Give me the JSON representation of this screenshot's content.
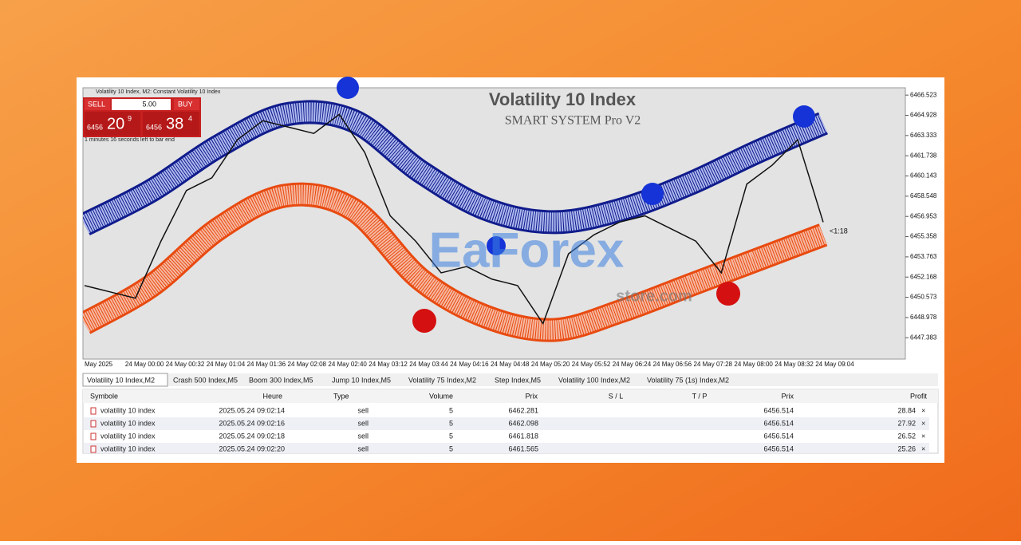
{
  "window": {
    "chart_header": "Volatility 10 Index, M2: Constant Volatility 10 Index",
    "countdown": "1 minutes 16 seconds left to bar end"
  },
  "trade_panel": {
    "sell": "SELL",
    "volume": "5.00",
    "buy": "BUY",
    "bid_big": "6456",
    "bid_main": "20",
    "bid_small": "9",
    "ask_big": "6456",
    "ask_main": "38",
    "ask_small": "4"
  },
  "chart": {
    "title": "Volatility 10 Index",
    "subtitle": "SMART SYSTEM Pro V2",
    "timer": "<1:18",
    "watermark": "EaForex",
    "watermark_sub": "store.com",
    "ylim": [
      6445.7,
      6467.1
    ],
    "yticks": [
      6466.523,
      6464.928,
      6463.333,
      6461.738,
      6460.143,
      6458.548,
      6456.953,
      6455.358,
      6453.763,
      6452.168,
      6450.573,
      6448.978,
      6447.383
    ],
    "xticks": [
      "May 2025",
      "24 May 00:00",
      "24 May 00:32",
      "24 May 01:04",
      "24 May 01:36",
      "24 May 02:08",
      "24 May 02:40",
      "24 May 03:12",
      "24 May 03:44",
      "24 May 04:16",
      "24 May 04:48",
      "24 May 05:20",
      "24 May 05:52",
      "24 May 06:24",
      "24 May 06:56",
      "24 May 07:28",
      "24 May 08:00",
      "24 May 08:32",
      "24 May 09:04"
    ],
    "price": [
      6451.5,
      6451,
      6450.5,
      6455,
      6459,
      6460,
      6463,
      6464.5,
      6464,
      6463.5,
      6465,
      6462,
      6457,
      6455,
      6452.5,
      6453,
      6452,
      6451.5,
      6448.5,
      6454,
      6455.5,
      6456.5,
      6457,
      6456,
      6455,
      6452.5,
      6459.5,
      6461,
      6463,
      6456.5
    ],
    "upper_band": [
      6456.3,
      6459,
      6462.5,
      6465,
      6464.5,
      6460.5,
      6457.5,
      6456.5,
      6457.5,
      6459.5,
      6462,
      6464.3
    ],
    "lower_band": [
      6448.5,
      6451.5,
      6456,
      6458.6,
      6457.5,
      6452,
      6449,
      6448,
      6449.5,
      6451.5,
      6453.5,
      6455.5
    ]
  },
  "tabs": [
    "Volatility 10 Index,M2",
    "Crash 500 Index,M5",
    "Boom 300 Index,M5",
    "Jump 10 Index,M5",
    "Volatility 75 Index,M2",
    "Step Index,M5",
    "Volatility 100 Index,M2",
    "Volatility 75 (1s) Index,M2"
  ],
  "table": {
    "headers": [
      "Symbole",
      "Heure",
      "Type",
      "Volume",
      "Prix",
      "S / L",
      "T / P",
      "Prix",
      "Profit"
    ],
    "rows": [
      [
        "volatility 10 index",
        "2025.05.24 09:02:14",
        "sell",
        5,
        6462.281,
        6456.514,
        28.84
      ],
      [
        "volatility 10 index",
        "2025.05.24 09:02:16",
        "sell",
        5,
        6462.098,
        6456.514,
        27.92
      ],
      [
        "volatility 10 index",
        "2025.05.24 09:02:18",
        "sell",
        5,
        6461.818,
        6456.514,
        26.52
      ],
      [
        "volatility 10 index",
        "2025.05.24 09:02:20",
        "sell",
        5,
        6461.565,
        6456.514,
        25.26
      ]
    ]
  }
}
